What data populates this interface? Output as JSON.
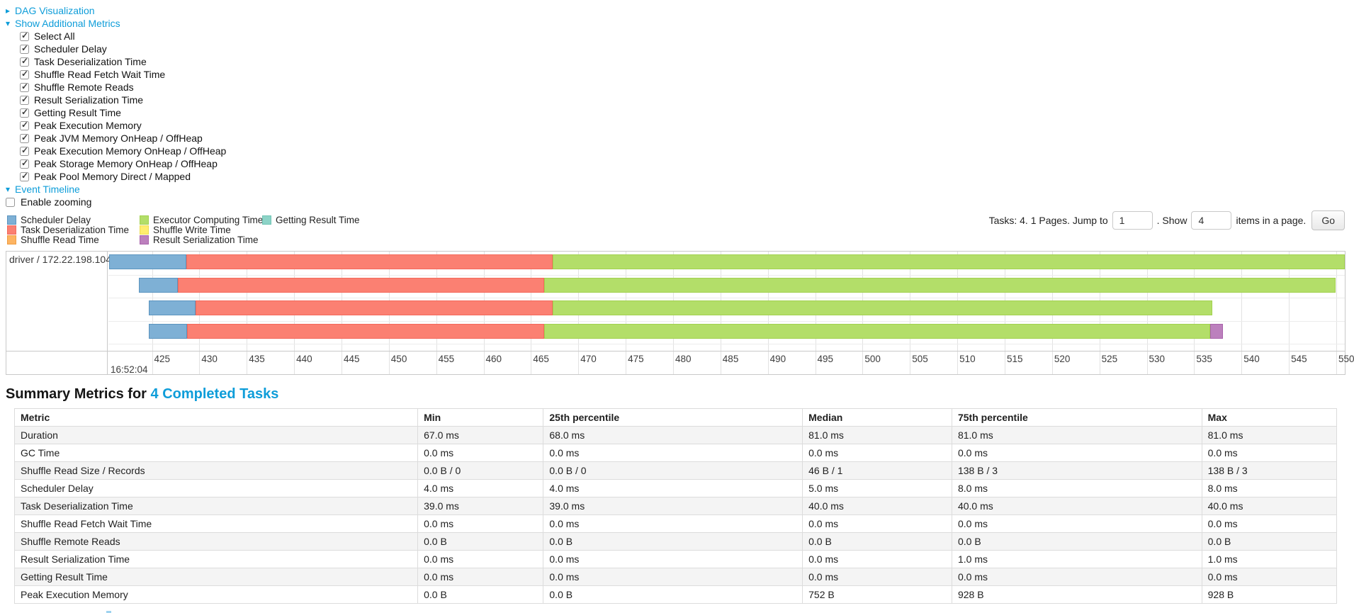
{
  "controls": {
    "dag": {
      "label": "DAG Visualization",
      "arrow": "▸"
    },
    "metrics_toggle": {
      "label": "Show Additional Metrics",
      "arrow": "▾"
    },
    "checkboxes": [
      {
        "label": "Select All",
        "checked": true
      },
      {
        "label": "Scheduler Delay",
        "checked": true
      },
      {
        "label": "Task Deserialization Time",
        "checked": true
      },
      {
        "label": "Shuffle Read Fetch Wait Time",
        "checked": true
      },
      {
        "label": "Shuffle Remote Reads",
        "checked": true
      },
      {
        "label": "Result Serialization Time",
        "checked": true
      },
      {
        "label": "Getting Result Time",
        "checked": true
      },
      {
        "label": "Peak Execution Memory",
        "checked": true
      },
      {
        "label": "Peak JVM Memory OnHeap / OffHeap",
        "checked": true
      },
      {
        "label": "Peak Execution Memory OnHeap / OffHeap",
        "checked": true
      },
      {
        "label": "Peak Storage Memory OnHeap / OffHeap",
        "checked": true
      },
      {
        "label": "Peak Pool Memory Direct / Mapped",
        "checked": true
      }
    ],
    "event_timeline": {
      "label": "Event Timeline",
      "arrow": "▾"
    },
    "enable_zooming": {
      "label": "Enable zooming",
      "checked": false
    }
  },
  "legend": {
    "columns": [
      [
        "scheduler_delay",
        "task_deserialization",
        "shuffle_read"
      ],
      [
        "executor_computing",
        "shuffle_write",
        "result_serialization"
      ],
      [
        "getting_result"
      ]
    ]
  },
  "pagination": {
    "text_before": "Tasks: 4. 1 Pages. Jump to",
    "jump_value": "1",
    "show_label": ". Show",
    "show_value": "4",
    "text_after": "items in a page.",
    "go_label": "Go"
  },
  "chart_data": {
    "type": "timeline",
    "row_label": "driver / 172.22.198.104",
    "x_axis": {
      "window_min": 420.4,
      "window_max": 550.9,
      "tick_start": 425,
      "tick_step": 5,
      "tick_end": 550,
      "major_label": "16:52:04"
    },
    "series": {
      "scheduler_delay": {
        "label": "Scheduler Delay",
        "fill": "#7EB0D5",
        "border": "#5B94BF"
      },
      "task_deserialization": {
        "label": "Task Deserialization Time",
        "fill": "#FB8072",
        "border": "#F4685A"
      },
      "shuffle_read": {
        "label": "Shuffle Read Time",
        "fill": "#FDB462",
        "border": "#F09C42"
      },
      "executor_computing": {
        "label": "Executor Computing Time",
        "fill": "#B3DE69",
        "border": "#A2D14F"
      },
      "shuffle_write": {
        "label": "Shuffle Write Time",
        "fill": "#FFED6F",
        "border": "#EEDC4D"
      },
      "result_serialization": {
        "label": "Result Serialization Time",
        "fill": "#BC80BD",
        "border": "#A963AB"
      },
      "getting_result": {
        "label": "Getting Result Time",
        "fill": "#8DD3C7",
        "border": "#6FC4B4"
      }
    },
    "tasks": [
      {
        "segments": [
          {
            "type": "scheduler_delay",
            "start": 420.5,
            "end": 428.6
          },
          {
            "type": "task_deserialization",
            "start": 428.6,
            "end": 467.3
          },
          {
            "type": "executor_computing",
            "start": 467.3,
            "end": 551.0
          }
        ]
      },
      {
        "segments": [
          {
            "type": "scheduler_delay",
            "start": 423.6,
            "end": 427.7
          },
          {
            "type": "task_deserialization",
            "start": 427.7,
            "end": 466.4
          },
          {
            "type": "executor_computing",
            "start": 466.4,
            "end": 549.9
          }
        ]
      },
      {
        "segments": [
          {
            "type": "scheduler_delay",
            "start": 424.7,
            "end": 429.6
          },
          {
            "type": "task_deserialization",
            "start": 429.6,
            "end": 467.3
          },
          {
            "type": "executor_computing",
            "start": 467.3,
            "end": 536.9
          }
        ]
      },
      {
        "segments": [
          {
            "type": "scheduler_delay",
            "start": 424.7,
            "end": 428.7
          },
          {
            "type": "task_deserialization",
            "start": 428.7,
            "end": 466.4
          },
          {
            "type": "executor_computing",
            "start": 466.4,
            "end": 536.7
          },
          {
            "type": "result_serialization",
            "start": 536.7,
            "end": 538.0
          }
        ]
      }
    ]
  },
  "summary": {
    "title_prefix": "Summary Metrics for ",
    "title_link": "4 Completed Tasks",
    "table": {
      "columns": [
        "Metric",
        "Min",
        "25th percentile",
        "Median",
        "75th percentile",
        "Max"
      ],
      "column_widths_pct": [
        30.5,
        9.5,
        19.6,
        11.3,
        18.9,
        10.2
      ],
      "rows": [
        {
          "metric": "Duration",
          "values": [
            "67.0 ms",
            "68.0 ms",
            "81.0 ms",
            "81.0 ms",
            "81.0 ms"
          ]
        },
        {
          "metric": "GC Time",
          "values": [
            "0.0 ms",
            "0.0 ms",
            "0.0 ms",
            "0.0 ms",
            "0.0 ms"
          ]
        },
        {
          "metric": "Shuffle Read Size / Records",
          "values": [
            "0.0 B / 0",
            "0.0 B / 0",
            "46 B / 1",
            "138 B / 3",
            "138 B / 3"
          ]
        },
        {
          "metric": "Scheduler Delay",
          "values": [
            "4.0 ms",
            "4.0 ms",
            "5.0 ms",
            "8.0 ms",
            "8.0 ms"
          ]
        },
        {
          "metric": "Task Deserialization Time",
          "values": [
            "39.0 ms",
            "39.0 ms",
            "40.0 ms",
            "40.0 ms",
            "40.0 ms"
          ]
        },
        {
          "metric": "Shuffle Read Fetch Wait Time",
          "values": [
            "0.0 ms",
            "0.0 ms",
            "0.0 ms",
            "0.0 ms",
            "0.0 ms"
          ]
        },
        {
          "metric": "Shuffle Remote Reads",
          "values": [
            "0.0 B",
            "0.0 B",
            "0.0 B",
            "0.0 B",
            "0.0 B"
          ]
        },
        {
          "metric": "Result Serialization Time",
          "values": [
            "0.0 ms",
            "0.0 ms",
            "0.0 ms",
            "1.0 ms",
            "1.0 ms"
          ]
        },
        {
          "metric": "Getting Result Time",
          "values": [
            "0.0 ms",
            "0.0 ms",
            "0.0 ms",
            "0.0 ms",
            "0.0 ms"
          ]
        },
        {
          "metric": "Peak Execution Memory",
          "values": [
            "0.0 B",
            "0.0 B",
            "752 B",
            "928 B",
            "928 B"
          ]
        }
      ]
    }
  },
  "colors": {
    "link": "#0e9dd9"
  }
}
